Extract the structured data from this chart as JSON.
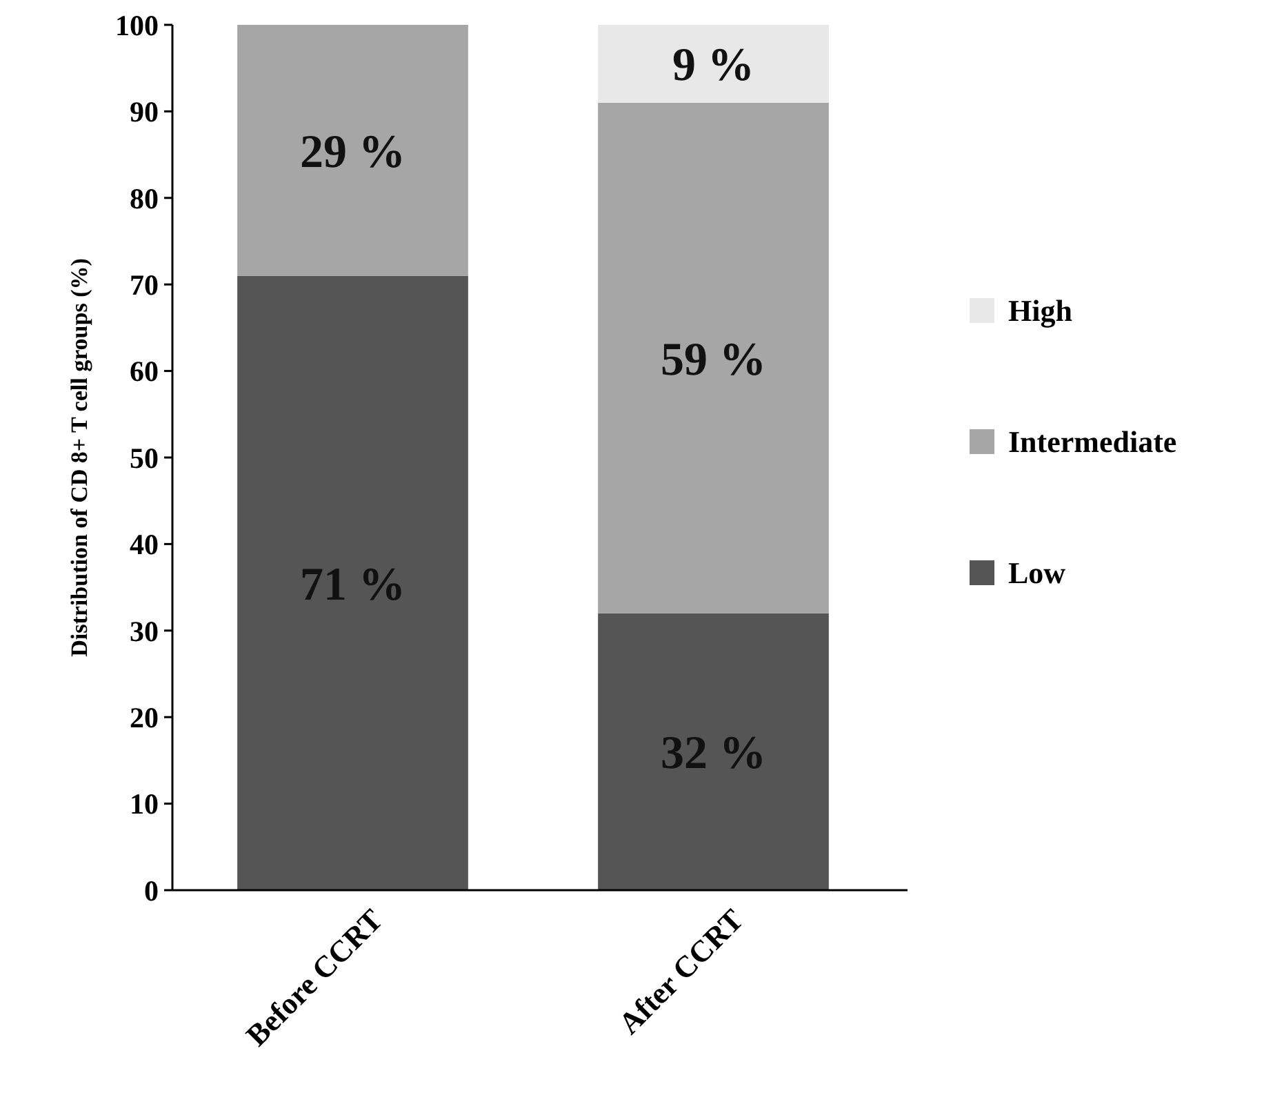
{
  "chart_data": {
    "type": "bar",
    "stacked": true,
    "ylabel": "Distribution of CD 8+ T cell groups (%)",
    "categories": [
      "Before CCRT",
      "After CCRT"
    ],
    "ylim": [
      0,
      100
    ],
    "yticks": [
      0,
      10,
      20,
      30,
      40,
      50,
      60,
      70,
      80,
      90,
      100
    ],
    "legend": "right",
    "series": [
      {
        "name": "Low",
        "color": "#555555",
        "values": [
          71,
          32
        ],
        "value_labels": [
          "71 %",
          "32 %"
        ]
      },
      {
        "name": "Intermediate",
        "color": "#a6a6a6",
        "values": [
          29,
          59
        ],
        "value_labels": [
          "29 %",
          "59 %"
        ]
      },
      {
        "name": "High",
        "color": "#e8e8e8",
        "values": [
          0,
          9
        ],
        "value_labels": [
          null,
          "9 %"
        ]
      }
    ]
  }
}
